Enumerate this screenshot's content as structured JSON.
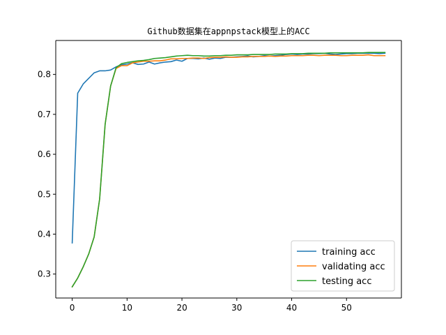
{
  "chart_data": {
    "type": "line",
    "title": "Github数据集在appnpstack模型上的ACC",
    "xlabel": "",
    "ylabel": "",
    "xlim": [
      -3,
      60
    ],
    "ylim": [
      0.24,
      0.885
    ],
    "xticks": [
      0,
      10,
      20,
      30,
      40,
      50
    ],
    "yticks": [
      0.3,
      0.4,
      0.5,
      0.6,
      0.7,
      0.8
    ],
    "grid": false,
    "legend_position": "lower-right",
    "x": [
      0,
      1,
      2,
      3,
      4,
      5,
      6,
      7,
      8,
      9,
      10,
      11,
      12,
      13,
      14,
      15,
      16,
      17,
      18,
      19,
      20,
      21,
      22,
      23,
      24,
      25,
      26,
      27,
      28,
      29,
      30,
      31,
      32,
      33,
      34,
      35,
      36,
      37,
      38,
      39,
      40,
      41,
      42,
      43,
      44,
      45,
      46,
      47,
      48,
      49,
      50,
      51,
      52,
      53,
      54,
      55,
      56,
      57
    ],
    "series": [
      {
        "name": "training acc",
        "color": "#1f77b4",
        "values": [
          0.378,
          0.753,
          0.776,
          0.79,
          0.804,
          0.809,
          0.809,
          0.811,
          0.819,
          0.824,
          0.826,
          0.829,
          0.825,
          0.826,
          0.831,
          0.826,
          0.829,
          0.831,
          0.832,
          0.836,
          0.833,
          0.84,
          0.84,
          0.839,
          0.841,
          0.838,
          0.841,
          0.84,
          0.843,
          0.843,
          0.844,
          0.845,
          0.846,
          0.844,
          0.845,
          0.847,
          0.846,
          0.847,
          0.848,
          0.85,
          0.851,
          0.85,
          0.851,
          0.851,
          0.852,
          0.852,
          0.853,
          0.851,
          0.85,
          0.851,
          0.852,
          0.852,
          0.853,
          0.853,
          0.853,
          0.853,
          0.852,
          0.853
        ]
      },
      {
        "name": "validating acc",
        "color": "#ff7f0e",
        "values": [
          0.268,
          0.29,
          0.318,
          0.35,
          0.393,
          0.488,
          0.675,
          0.771,
          0.815,
          0.822,
          0.822,
          0.829,
          0.831,
          0.833,
          0.833,
          0.834,
          0.834,
          0.836,
          0.839,
          0.839,
          0.84,
          0.84,
          0.841,
          0.841,
          0.84,
          0.842,
          0.843,
          0.843,
          0.844,
          0.843,
          0.843,
          0.844,
          0.844,
          0.845,
          0.845,
          0.845,
          0.846,
          0.845,
          0.846,
          0.846,
          0.847,
          0.847,
          0.847,
          0.848,
          0.848,
          0.847,
          0.848,
          0.848,
          0.848,
          0.847,
          0.847,
          0.848,
          0.848,
          0.848,
          0.849,
          0.847,
          0.847,
          0.847
        ]
      },
      {
        "name": "testing acc",
        "color": "#2ca02c",
        "values": [
          0.268,
          0.29,
          0.318,
          0.35,
          0.393,
          0.488,
          0.675,
          0.771,
          0.817,
          0.827,
          0.83,
          0.832,
          0.834,
          0.835,
          0.837,
          0.84,
          0.841,
          0.842,
          0.844,
          0.846,
          0.847,
          0.848,
          0.847,
          0.847,
          0.846,
          0.846,
          0.847,
          0.847,
          0.848,
          0.848,
          0.849,
          0.849,
          0.849,
          0.85,
          0.85,
          0.85,
          0.85,
          0.851,
          0.851,
          0.851,
          0.852,
          0.852,
          0.852,
          0.853,
          0.853,
          0.853,
          0.853,
          0.854,
          0.854,
          0.854,
          0.854,
          0.854,
          0.854,
          0.854,
          0.855,
          0.855,
          0.855,
          0.855
        ]
      }
    ]
  }
}
